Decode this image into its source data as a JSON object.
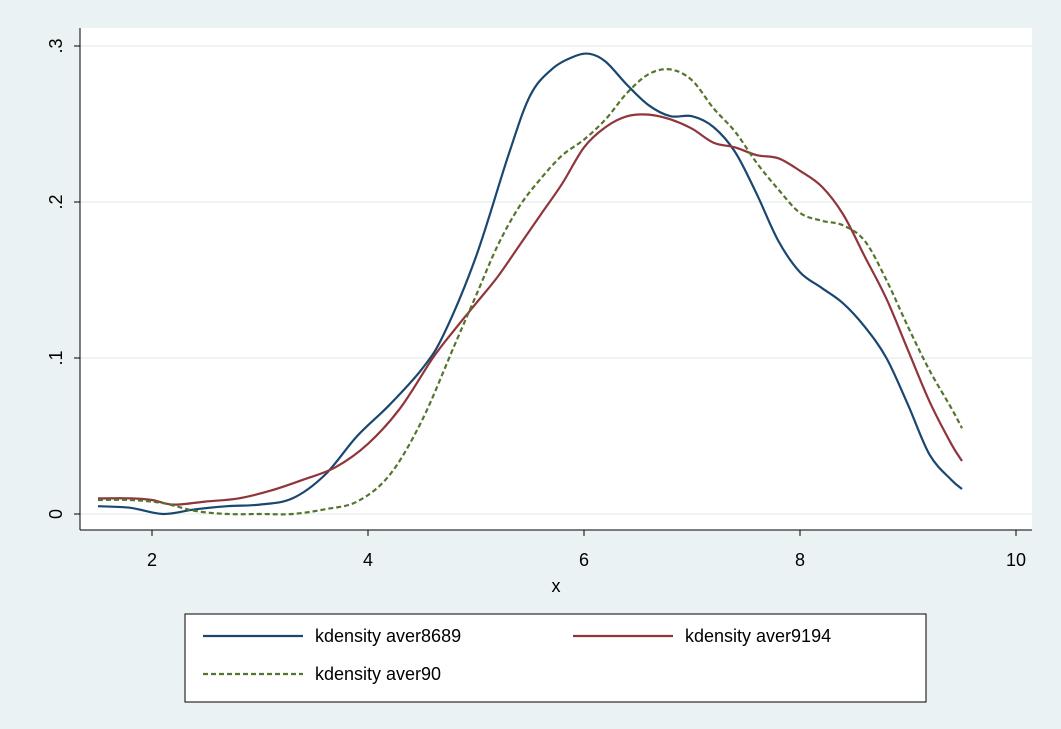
{
  "chart_data": {
    "type": "line",
    "title": "",
    "xlabel": "x",
    "ylabel": "",
    "xlim": [
      1.5,
      10
    ],
    "ylim": [
      0,
      0.3
    ],
    "x_ticks": [
      2,
      4,
      6,
      8,
      10
    ],
    "x_tick_labels": [
      "2",
      "4",
      "6",
      "8",
      "10"
    ],
    "y_ticks": [
      0,
      0.1,
      0.2,
      0.3
    ],
    "y_tick_labels": [
      "0",
      ".1",
      ".2",
      ".3"
    ],
    "grid": true,
    "legend_position": "bottom",
    "colors": {
      "background": "#eaf2f3",
      "plot_background": "#ffffff",
      "grid": "#e3ecee"
    },
    "series": [
      {
        "name": "kdensity aver8689",
        "color": "#1a476f",
        "dash": "solid",
        "x": [
          1.5,
          1.8,
          2.1,
          2.4,
          2.7,
          3.0,
          3.3,
          3.6,
          3.9,
          4.2,
          4.5,
          4.7,
          5.0,
          5.3,
          5.5,
          5.7,
          5.9,
          6.05,
          6.2,
          6.4,
          6.6,
          6.8,
          7.0,
          7.2,
          7.4,
          7.6,
          7.8,
          8.0,
          8.2,
          8.4,
          8.6,
          8.8,
          9.0,
          9.2,
          9.4,
          9.5
        ],
        "y": [
          0.005,
          0.004,
          0.0,
          0.003,
          0.005,
          0.006,
          0.01,
          0.025,
          0.05,
          0.07,
          0.093,
          0.115,
          0.165,
          0.23,
          0.268,
          0.285,
          0.293,
          0.295,
          0.29,
          0.275,
          0.262,
          0.255,
          0.255,
          0.248,
          0.232,
          0.205,
          0.175,
          0.155,
          0.145,
          0.135,
          0.12,
          0.1,
          0.07,
          0.038,
          0.022,
          0.016
        ]
      },
      {
        "name": "kdensity aver9194",
        "color": "#90353b",
        "dash": "solid",
        "x": [
          1.5,
          1.8,
          2.0,
          2.2,
          2.5,
          2.8,
          3.1,
          3.4,
          3.7,
          4.0,
          4.3,
          4.6,
          4.8,
          5.0,
          5.2,
          5.4,
          5.6,
          5.8,
          6.0,
          6.2,
          6.4,
          6.6,
          6.8,
          7.0,
          7.2,
          7.4,
          7.6,
          7.8,
          8.0,
          8.2,
          8.4,
          8.6,
          8.8,
          9.0,
          9.2,
          9.4,
          9.5
        ],
        "y": [
          0.01,
          0.01,
          0.009,
          0.006,
          0.008,
          0.01,
          0.015,
          0.022,
          0.03,
          0.045,
          0.068,
          0.1,
          0.118,
          0.135,
          0.152,
          0.172,
          0.192,
          0.212,
          0.235,
          0.248,
          0.255,
          0.256,
          0.253,
          0.247,
          0.238,
          0.235,
          0.23,
          0.228,
          0.22,
          0.21,
          0.192,
          0.165,
          0.138,
          0.105,
          0.072,
          0.045,
          0.034
        ]
      },
      {
        "name": "kdensity aver90",
        "color": "#55752f",
        "dash": "dashed",
        "x": [
          1.5,
          1.8,
          2.1,
          2.4,
          2.7,
          3.0,
          3.3,
          3.6,
          3.9,
          4.2,
          4.5,
          4.8,
          5.0,
          5.2,
          5.4,
          5.6,
          5.8,
          6.0,
          6.2,
          6.4,
          6.6,
          6.8,
          7.0,
          7.2,
          7.4,
          7.6,
          7.8,
          8.0,
          8.2,
          8.4,
          8.6,
          8.8,
          9.0,
          9.2,
          9.4,
          9.5
        ],
        "y": [
          0.009,
          0.009,
          0.007,
          0.002,
          0.0,
          0.0,
          0.0,
          0.003,
          0.008,
          0.025,
          0.06,
          0.108,
          0.14,
          0.172,
          0.197,
          0.215,
          0.23,
          0.24,
          0.253,
          0.27,
          0.282,
          0.285,
          0.278,
          0.26,
          0.245,
          0.225,
          0.208,
          0.193,
          0.188,
          0.185,
          0.175,
          0.15,
          0.12,
          0.092,
          0.068,
          0.055
        ]
      }
    ]
  }
}
